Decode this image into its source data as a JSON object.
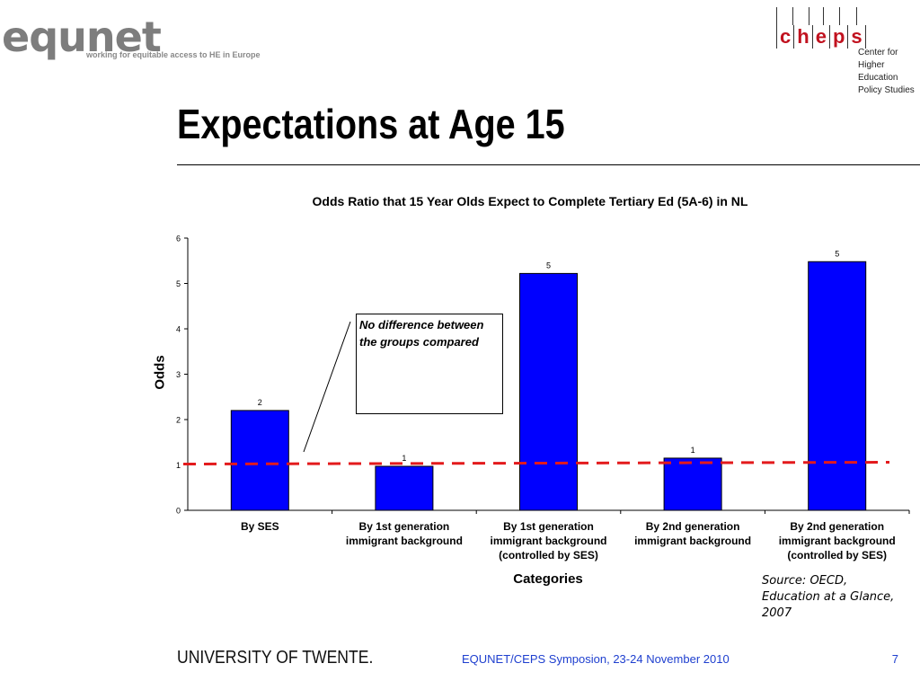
{
  "header": {
    "equnet_logo": "equnet",
    "equnet_tagline": "working for equitable access to HE in Europe",
    "cheps_letters": [
      "c",
      "h",
      "e",
      "p",
      "s"
    ],
    "cheps_subtitle": [
      "Center for",
      "Higher Education",
      "Policy Studies"
    ]
  },
  "slide": {
    "title": "Expectations at Age 15"
  },
  "callout": {
    "text_line1": "No difference between",
    "text_line2": "the groups compared"
  },
  "source": {
    "line1": "Source: OECD,",
    "line2": "Education at a Glance,",
    "line3": "2007"
  },
  "footer": {
    "university": "UNIVERSITY OF TWENTE.",
    "event": "EQUNET/CEPS Symposion, 23-24 November 2010",
    "page": "7"
  },
  "colors": {
    "bar": "#0000ff",
    "reference_line": "#e31a1c",
    "footer_text": "#1e3fcf",
    "cheps_red": "#c1121f"
  },
  "chart_data": {
    "type": "bar",
    "title": "Odds Ratio that 15 Year Olds Expect to Complete Tertiary Ed (5A-6) in NL",
    "xlabel": "Categories",
    "ylabel": "Odds",
    "ylim": [
      0,
      6
    ],
    "yticks": [
      "0",
      "1",
      "2",
      "3",
      "4",
      "5",
      "6"
    ],
    "categories": [
      [
        "By SES"
      ],
      [
        "By 1st generation",
        "immigrant background"
      ],
      [
        "By 1st generation",
        "immigrant background",
        "(controlled by SES)"
      ],
      [
        "By 2nd generation",
        "immigrant background"
      ],
      [
        "By 2nd generation",
        "immigrant background",
        "(controlled by SES)"
      ]
    ],
    "values": [
      2.2,
      0.97,
      5.22,
      1.15,
      5.48
    ],
    "data_labels": [
      "2",
      "1",
      "5",
      "1",
      "5"
    ],
    "reference_line": {
      "y": 1,
      "style": "dashed"
    },
    "grid": false,
    "legend": "none"
  }
}
